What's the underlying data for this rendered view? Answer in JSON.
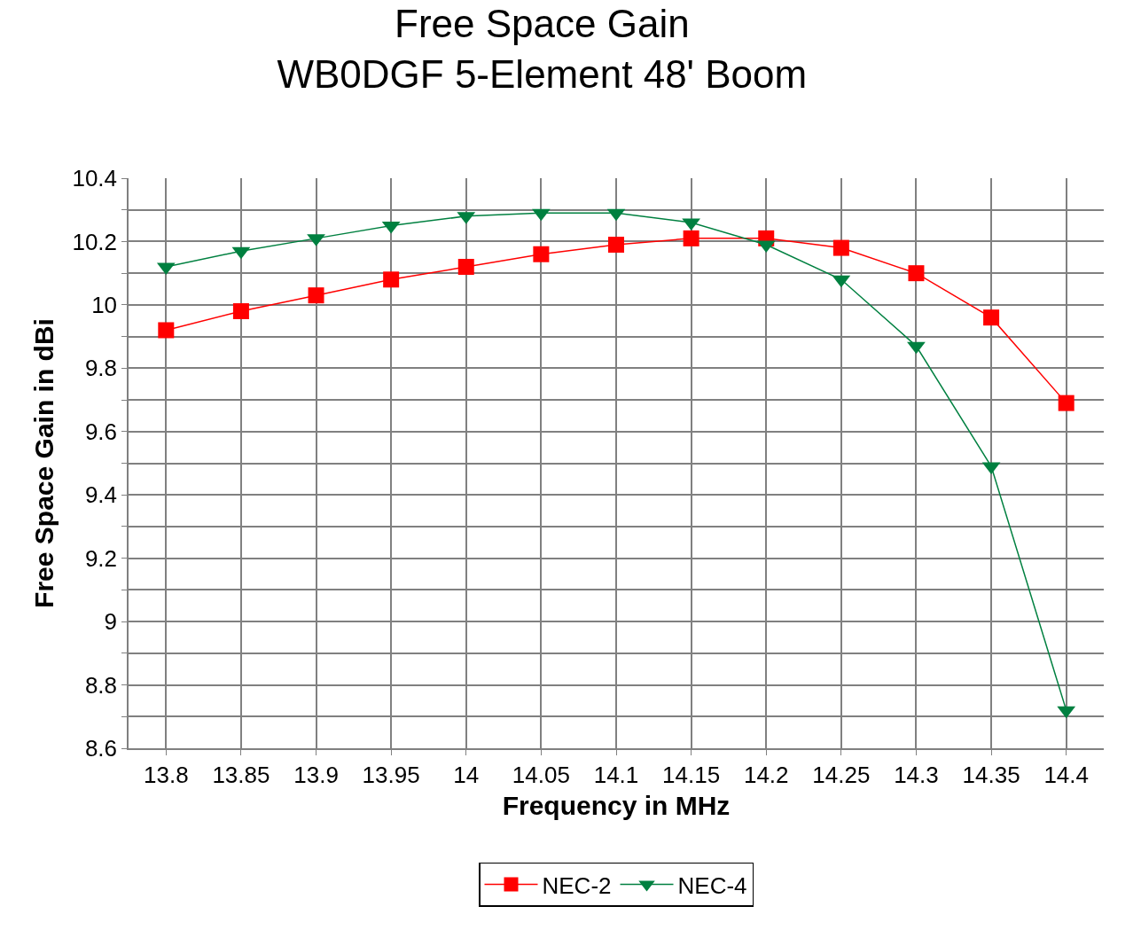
{
  "chart_data": {
    "type": "line",
    "title": "Free Space Gain",
    "subtitle": "WB0DGF 5-Element 48' Boom",
    "xlabel": "Frequency in MHz",
    "ylabel": "Free Space Gain in dBi",
    "categories": [
      "13.8",
      "13.85",
      "13.9",
      "13.95",
      "14",
      "14.05",
      "14.1",
      "14.15",
      "14.2",
      "14.25",
      "14.3",
      "14.35",
      "14.4"
    ],
    "series": [
      {
        "name": "NEC-2",
        "color": "#ff0000",
        "marker": "square",
        "values": [
          9.92,
          9.98,
          10.03,
          10.08,
          10.12,
          10.16,
          10.19,
          10.21,
          10.21,
          10.18,
          10.1,
          9.96,
          9.69
        ]
      },
      {
        "name": "NEC-4",
        "color": "#008040",
        "marker": "triangle",
        "values": [
          10.12,
          10.17,
          10.21,
          10.25,
          10.28,
          10.29,
          10.29,
          10.26,
          10.19,
          10.08,
          9.87,
          9.49,
          8.72
        ]
      }
    ],
    "ylim": [
      8.6,
      10.4
    ],
    "yticks": [
      8.6,
      {
        "value": 8.7,
        "label": null
      },
      8.8,
      {
        "value": 8.9,
        "label": null
      },
      9,
      {
        "value": 9.1,
        "label": null
      },
      9.2,
      {
        "value": 9.3,
        "label": null
      },
      9.4,
      {
        "value": 9.5,
        "label": null
      },
      9.6,
      {
        "value": 9.7,
        "label": null
      },
      9.8,
      {
        "value": 9.9,
        "label": null
      },
      10,
      {
        "value": 10.1,
        "label": null
      },
      10.2,
      {
        "value": 10.3,
        "label": null
      },
      10.4
    ],
    "grid": true,
    "legend": "bottom",
    "line_style": "solid"
  }
}
